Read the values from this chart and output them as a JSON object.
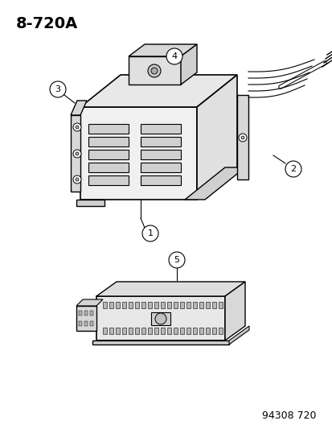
{
  "title": "8-720A",
  "part_number": "94308 720",
  "bg_color": "#ffffff",
  "line_color": "#000000",
  "callout_labels": [
    "1",
    "2",
    "3",
    "4",
    "5"
  ],
  "title_fontsize": 14,
  "part_number_fontsize": 9
}
